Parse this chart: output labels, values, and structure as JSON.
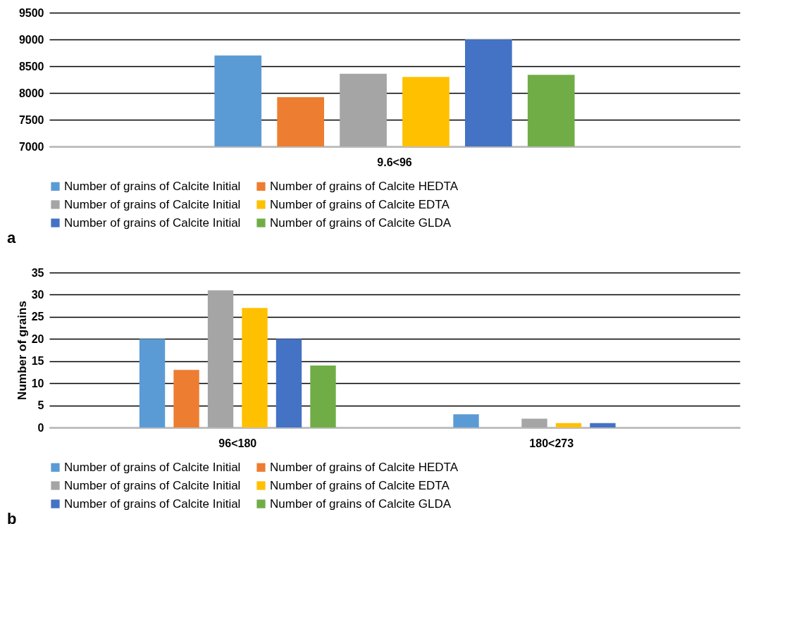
{
  "chart_data": [
    {
      "type": "bar",
      "categories": [
        "9.6<96"
      ],
      "ylim": [
        7000,
        9500
      ],
      "yticks": [
        7000,
        7500,
        8000,
        8500,
        9000,
        9500
      ],
      "grid": "y",
      "legend": "bottom",
      "annotations": [
        "a"
      ],
      "series": [
        {
          "name": "Number of grains of Calcite Initial",
          "color": "#5b9bd5",
          "values": [
            8700
          ]
        },
        {
          "name": "Number of grains of Calcite HEDTA",
          "color": "#ed7d31",
          "values": [
            7920
          ]
        },
        {
          "name": "Number of grains of Calcite Initial",
          "color": "#a5a5a5",
          "values": [
            8360
          ]
        },
        {
          "name": "Number of grains of Calcite EDTA",
          "color": "#ffc000",
          "values": [
            8300
          ]
        },
        {
          "name": "Number of grains of Calcite Initial",
          "color": "#4472c4",
          "values": [
            9000
          ]
        },
        {
          "name": "Number of grains of Calcite GLDA",
          "color": "#70ad47",
          "values": [
            8340
          ]
        }
      ]
    },
    {
      "type": "bar",
      "categories": [
        "96<180",
        "180<273"
      ],
      "ylabel": "Number of grains",
      "ylim": [
        0,
        35
      ],
      "yticks": [
        0,
        5,
        10,
        15,
        20,
        25,
        30,
        35
      ],
      "grid": "y",
      "legend": "bottom",
      "annotations": [
        "b"
      ],
      "series": [
        {
          "name": "Number of grains of Calcite Initial",
          "color": "#5b9bd5",
          "values": [
            20,
            3
          ]
        },
        {
          "name": "Number of grains of Calcite HEDTA",
          "color": "#ed7d31",
          "values": [
            13,
            0
          ]
        },
        {
          "name": "Number of grains of Calcite Initial",
          "color": "#a5a5a5",
          "values": [
            31,
            2
          ]
        },
        {
          "name": "Number of grains of Calcite EDTA",
          "color": "#ffc000",
          "values": [
            27,
            1
          ]
        },
        {
          "name": "Number of grains of Calcite Initial",
          "color": "#4472c4",
          "values": [
            20,
            1
          ]
        },
        {
          "name": "Number of grains of Calcite GLDA",
          "color": "#70ad47",
          "values": [
            14,
            0
          ]
        }
      ]
    }
  ]
}
